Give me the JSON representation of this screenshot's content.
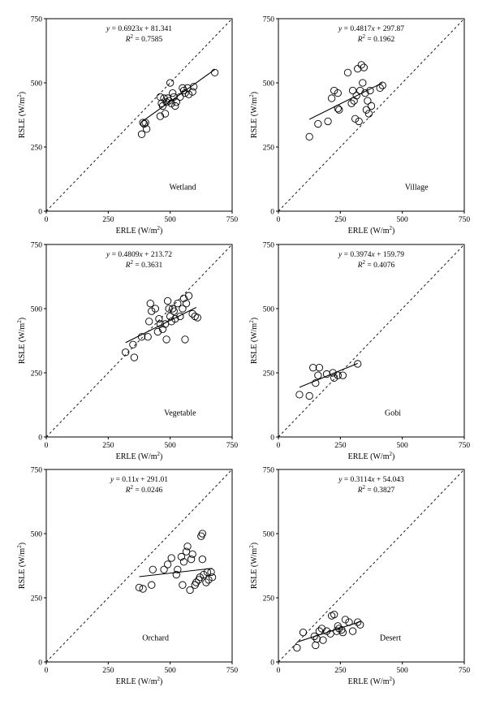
{
  "chart_data": [
    {
      "type": "scatter",
      "panel": "Wetland",
      "label": "Wetland",
      "equation": "y = 0.6923x + 81.341",
      "r2": "R² = 0.7585",
      "slope": 0.6923,
      "intercept": 81.341,
      "fit_x": [
        385,
        680
      ],
      "xlabel": "ERLE (W/m²)",
      "ylabel": "RSLE (W/m²)",
      "xlim": [
        0,
        750
      ],
      "ylim": [
        0,
        750
      ],
      "xticks": [
        "0",
        "250",
        "500",
        "750"
      ],
      "yticks": [
        "0",
        "250",
        "500",
        "750"
      ],
      "points": [
        [
          385,
          300
        ],
        [
          390,
          345
        ],
        [
          395,
          340
        ],
        [
          400,
          345
        ],
        [
          405,
          320
        ],
        [
          460,
          370
        ],
        [
          460,
          445
        ],
        [
          465,
          420
        ],
        [
          470,
          410
        ],
        [
          475,
          440
        ],
        [
          480,
          380
        ],
        [
          485,
          425
        ],
        [
          490,
          440
        ],
        [
          495,
          430
        ],
        [
          500,
          500
        ],
        [
          505,
          420
        ],
        [
          510,
          460
        ],
        [
          515,
          445
        ],
        [
          520,
          410
        ],
        [
          525,
          425
        ],
        [
          540,
          445
        ],
        [
          550,
          480
        ],
        [
          555,
          470
        ],
        [
          560,
          460
        ],
        [
          570,
          480
        ],
        [
          575,
          455
        ],
        [
          590,
          465
        ],
        [
          595,
          485
        ],
        [
          680,
          540
        ]
      ]
    },
    {
      "type": "scatter",
      "panel": "Village",
      "label": "Village",
      "equation": "y = 0.4817x + 297.87",
      "r2": "R² = 0.1962",
      "slope": 0.4817,
      "intercept": 297.87,
      "fit_x": [
        125,
        420
      ],
      "xlabel": "ERLE (W/m²)",
      "ylabel": "RSLE (W/m²)",
      "xlim": [
        0,
        750
      ],
      "ylim": [
        0,
        750
      ],
      "xticks": [
        "0",
        "250",
        "500",
        "750"
      ],
      "yticks": [
        "0",
        "250",
        "500",
        "750"
      ],
      "points": [
        [
          125,
          290
        ],
        [
          160,
          340
        ],
        [
          200,
          350
        ],
        [
          215,
          440
        ],
        [
          225,
          470
        ],
        [
          240,
          460
        ],
        [
          240,
          400
        ],
        [
          245,
          395
        ],
        [
          280,
          540
        ],
        [
          295,
          420
        ],
        [
          300,
          470
        ],
        [
          305,
          430
        ],
        [
          310,
          360
        ],
        [
          315,
          450
        ],
        [
          320,
          555
        ],
        [
          325,
          350
        ],
        [
          330,
          470
        ],
        [
          335,
          570
        ],
        [
          340,
          500
        ],
        [
          345,
          560
        ],
        [
          350,
          460
        ],
        [
          355,
          395
        ],
        [
          360,
          430
        ],
        [
          365,
          380
        ],
        [
          370,
          470
        ],
        [
          375,
          410
        ],
        [
          410,
          480
        ],
        [
          420,
          490
        ]
      ]
    },
    {
      "type": "scatter",
      "panel": "Vegetable",
      "label": "Vegetable",
      "equation": "y = 0.4809x + 213.72",
      "r2": "R² = 0.3631",
      "slope": 0.4809,
      "intercept": 213.72,
      "fit_x": [
        320,
        605
      ],
      "xlabel": "ERLE (W/m²)",
      "ylabel": "RSLE (W/m²)",
      "xlim": [
        0,
        750
      ],
      "ylim": [
        0,
        750
      ],
      "xticks": [
        "0",
        "250",
        "500",
        "750"
      ],
      "yticks": [
        "0",
        "250",
        "500",
        "750"
      ],
      "points": [
        [
          320,
          330
        ],
        [
          350,
          360
        ],
        [
          355,
          310
        ],
        [
          385,
          390
        ],
        [
          410,
          390
        ],
        [
          415,
          450
        ],
        [
          420,
          520
        ],
        [
          425,
          490
        ],
        [
          440,
          500
        ],
        [
          450,
          410
        ],
        [
          455,
          460
        ],
        [
          460,
          440
        ],
        [
          470,
          420
        ],
        [
          480,
          440
        ],
        [
          485,
          380
        ],
        [
          490,
          530
        ],
        [
          495,
          500
        ],
        [
          500,
          470
        ],
        [
          505,
          450
        ],
        [
          510,
          500
        ],
        [
          515,
          490
        ],
        [
          520,
          460
        ],
        [
          530,
          520
        ],
        [
          540,
          470
        ],
        [
          550,
          500
        ],
        [
          555,
          540
        ],
        [
          560,
          380
        ],
        [
          565,
          520
        ],
        [
          575,
          550
        ],
        [
          590,
          480
        ],
        [
          600,
          470
        ],
        [
          610,
          465
        ]
      ]
    },
    {
      "type": "scatter",
      "panel": "Gobi",
      "label": "Gobi",
      "equation": "y = 0.3974x + 159.79",
      "r2": "R² = 0.4076",
      "slope": 0.3974,
      "intercept": 159.79,
      "fit_x": [
        85,
        320
      ],
      "xlabel": "ERLE (W/m²)",
      "ylabel": "RSLE (W/m²)",
      "xlim": [
        0,
        750
      ],
      "ylim": [
        0,
        750
      ],
      "xticks": [
        "0",
        "250",
        "500",
        "750"
      ],
      "yticks": [
        "0",
        "250",
        "500",
        "750"
      ],
      "points": [
        [
          85,
          165
        ],
        [
          125,
          160
        ],
        [
          140,
          270
        ],
        [
          150,
          210
        ],
        [
          160,
          240
        ],
        [
          165,
          270
        ],
        [
          195,
          245
        ],
        [
          220,
          250
        ],
        [
          225,
          230
        ],
        [
          240,
          240
        ],
        [
          260,
          240
        ],
        [
          320,
          285
        ]
      ]
    },
    {
      "type": "scatter",
      "panel": "Orchard",
      "label": "Orchard",
      "equation": "y = 0.11x + 291.01",
      "r2": "R² = 0.0246",
      "slope": 0.11,
      "intercept": 291.01,
      "fit_x": [
        375,
        670
      ],
      "xlabel": "ERLE (W/m²)",
      "ylabel": "RSLE (W/m²)",
      "xlim": [
        0,
        750
      ],
      "ylim": [
        0,
        750
      ],
      "xticks": [
        "0",
        "250",
        "500",
        "750"
      ],
      "yticks": [
        "0",
        "250",
        "500",
        "750"
      ],
      "points": [
        [
          375,
          290
        ],
        [
          390,
          285
        ],
        [
          425,
          300
        ],
        [
          430,
          360
        ],
        [
          475,
          360
        ],
        [
          490,
          380
        ],
        [
          505,
          405
        ],
        [
          525,
          340
        ],
        [
          530,
          360
        ],
        [
          545,
          410
        ],
        [
          550,
          300
        ],
        [
          555,
          390
        ],
        [
          565,
          430
        ],
        [
          570,
          450
        ],
        [
          580,
          280
        ],
        [
          585,
          400
        ],
        [
          590,
          420
        ],
        [
          600,
          300
        ],
        [
          605,
          310
        ],
        [
          615,
          320
        ],
        [
          620,
          330
        ],
        [
          625,
          490
        ],
        [
          630,
          500
        ],
        [
          630,
          400
        ],
        [
          635,
          340
        ],
        [
          645,
          310
        ],
        [
          650,
          350
        ],
        [
          655,
          320
        ],
        [
          665,
          350
        ],
        [
          670,
          330
        ]
      ]
    },
    {
      "type": "scatter",
      "panel": "Desert",
      "label": "Desert",
      "equation": "y = 0.3114x + 54.043",
      "r2": "R² = 0.3827",
      "slope": 0.3114,
      "intercept": 54.043,
      "fit_x": [
        75,
        330
      ],
      "xlabel": "ERLE (W/m²)",
      "ylabel": "RSLE (W/m²)",
      "xlim": [
        0,
        750
      ],
      "ylim": [
        0,
        750
      ],
      "xticks": [
        "0",
        "250",
        "500",
        "750"
      ],
      "yticks": [
        "0",
        "250",
        "500",
        "750"
      ],
      "points": [
        [
          75,
          55
        ],
        [
          100,
          115
        ],
        [
          145,
          100
        ],
        [
          150,
          65
        ],
        [
          155,
          90
        ],
        [
          165,
          120
        ],
        [
          175,
          130
        ],
        [
          180,
          85
        ],
        [
          195,
          120
        ],
        [
          210,
          110
        ],
        [
          215,
          180
        ],
        [
          225,
          185
        ],
        [
          235,
          120
        ],
        [
          240,
          140
        ],
        [
          245,
          130
        ],
        [
          255,
          125
        ],
        [
          260,
          115
        ],
        [
          270,
          165
        ],
        [
          285,
          155
        ],
        [
          300,
          120
        ],
        [
          320,
          155
        ],
        [
          330,
          145
        ]
      ]
    }
  ]
}
